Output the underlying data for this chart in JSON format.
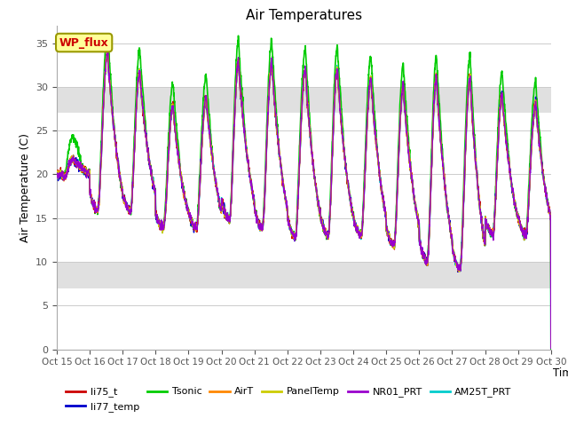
{
  "title": "Air Temperatures",
  "xlabel": "Time",
  "ylabel": "Air Temperature (C)",
  "ylim": [
    0,
    37
  ],
  "yticks": [
    0,
    5,
    10,
    15,
    20,
    25,
    30,
    35
  ],
  "xtick_labels": [
    "Oct 15",
    "Oct 16",
    "Oct 17",
    "Oct 18",
    "Oct 19",
    "Oct 20",
    "Oct 21",
    "Oct 22",
    "Oct 23",
    "Oct 24",
    "Oct 25",
    "Oct 26",
    "Oct 27",
    "Oct 28",
    "Oct 29",
    "Oct 30"
  ],
  "series": {
    "li75_t": {
      "color": "#cc0000",
      "lw": 1.0,
      "zorder": 5
    },
    "li77_temp": {
      "color": "#0000cc",
      "lw": 1.0,
      "zorder": 4
    },
    "Tsonic": {
      "color": "#00cc00",
      "lw": 1.2,
      "zorder": 2
    },
    "AirT": {
      "color": "#ff8800",
      "lw": 1.0,
      "zorder": 6
    },
    "PanelTemp": {
      "color": "#cccc00",
      "lw": 1.0,
      "zorder": 7
    },
    "NR01_PRT": {
      "color": "#9900cc",
      "lw": 1.0,
      "zorder": 8
    },
    "AM25T_PRT": {
      "color": "#00cccc",
      "lw": 1.2,
      "zorder": 3
    }
  },
  "annotation_text": "WP_flux",
  "annotation_color": "#cc0000",
  "annotation_bg": "#ffff99",
  "annotation_border": "#999900",
  "bg_band_color": "#e0e0e0",
  "bg_band_ranges": [
    [
      27,
      30
    ],
    [
      7,
      10
    ]
  ],
  "grid_color": "#cccccc",
  "fig_bg": "#ffffff",
  "ax_bg": "#ffffff",
  "legend_ncol": 6,
  "legend_items": [
    "li75_t",
    "li77_temp",
    "Tsonic",
    "AirT",
    "PanelTemp",
    "NR01_PRT",
    "AM25T_PRT"
  ]
}
